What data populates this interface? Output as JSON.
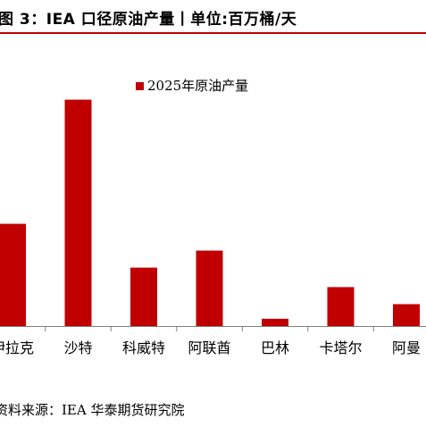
{
  "title": "图 3：IEA 口径原油产量丨单位:百万桶/天",
  "source": "资料来源：IEA 华泰期货研究院",
  "chart_data": {
    "type": "bar",
    "categories": [
      "伊拉克",
      "沙特",
      "科威特",
      "阿联酋",
      "巴林",
      "卡塔尔",
      "阿曼"
    ],
    "series": [
      {
        "name": "2025年原油产量",
        "values": [
          4.2,
          9.3,
          2.4,
          3.1,
          0.3,
          1.6,
          0.9
        ],
        "color": "#c00000"
      }
    ],
    "title": "",
    "xlabel": "",
    "ylabel": "",
    "ylim": [
      0,
      12
    ],
    "grid": false,
    "legend": "top-center"
  }
}
